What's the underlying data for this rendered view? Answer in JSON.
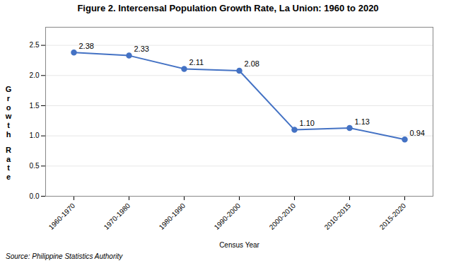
{
  "chart_data": {
    "type": "line",
    "title": "Figure 2. Intercensal Population Growth Rate, La Union: 1960 to 2020",
    "xlabel": "Census Year",
    "ylabel": "Growth Rate",
    "source": "Source: Philippine Statistics Authority",
    "categories": [
      "1960-1970",
      "1970-1980",
      "1980-1990",
      "1990-2000",
      "2000-2010",
      "2010-2015",
      "2015-2020"
    ],
    "values": [
      2.38,
      2.33,
      2.11,
      2.08,
      1.1,
      1.13,
      0.94
    ],
    "value_labels": [
      "2.38",
      "2.33",
      "2.11",
      "2.08",
      "1.10",
      "1.13",
      "0.94"
    ],
    "data_labels": true,
    "color": "#4472C4",
    "marker": "circle",
    "ylim": [
      0.0,
      2.8
    ],
    "yticks": [
      {
        "value": 0,
        "label": "0.0"
      },
      0.5,
      {
        "value": 1,
        "label": "1.0"
      },
      1.5,
      {
        "value": 2,
        "label": "2.0"
      },
      2.5
    ],
    "grid": true
  }
}
